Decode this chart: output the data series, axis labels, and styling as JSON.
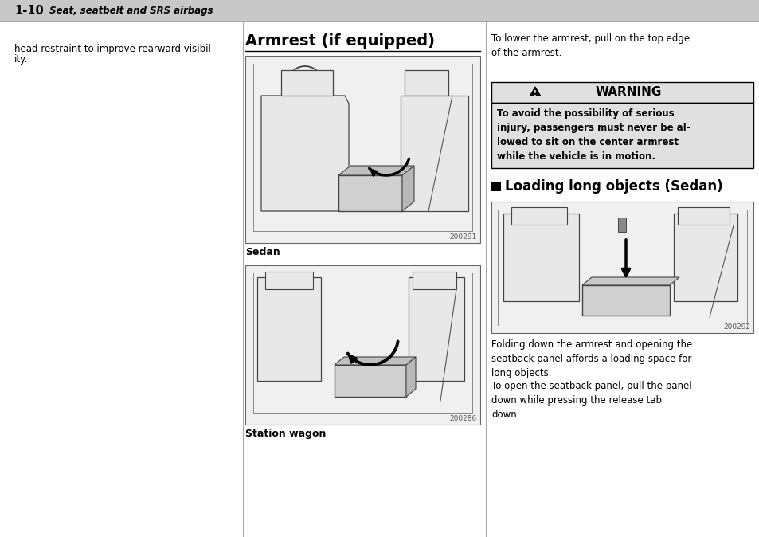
{
  "bg_color": "#ffffff",
  "header_bg": "#c8c8c8",
  "header_text_bold": "1-10",
  "header_text_italic": " Seat, seatbelt and SRS airbags",
  "left_col_text1": "head restraint to improve rearward visibil-",
  "left_col_text2": "ity.",
  "section_title": "Armrest (if equipped)",
  "right_intro_text": "To lower the armrest, pull on the top edge\nof the armrest.",
  "warning_header": "WARNING",
  "warning_body": "To avoid the possibility of serious\ninjury, passengers must never be al-\nlowed to sit on the center armrest\nwhile the vehicle is in motion.",
  "loading_section_title": "Loading long objects (Sedan)",
  "sedan_label": "Sedan",
  "station_wagon_label": "Station wagon",
  "img1_code": "200291",
  "img2_code": "200286",
  "img3_code": "200292",
  "bottom_text1": "Folding down the armrest and opening the\nseatback panel affords a loading space for\nlong objects.",
  "bottom_text2": "To open the seatback panel, pull the panel\ndown while pressing the release tab\ndown.",
  "warning_bg": "#e0e0e0",
  "img_bg": "#f0f0f0",
  "divider_color": "#aaaaaa",
  "border_color": "#666666",
  "text_color": "#000000"
}
